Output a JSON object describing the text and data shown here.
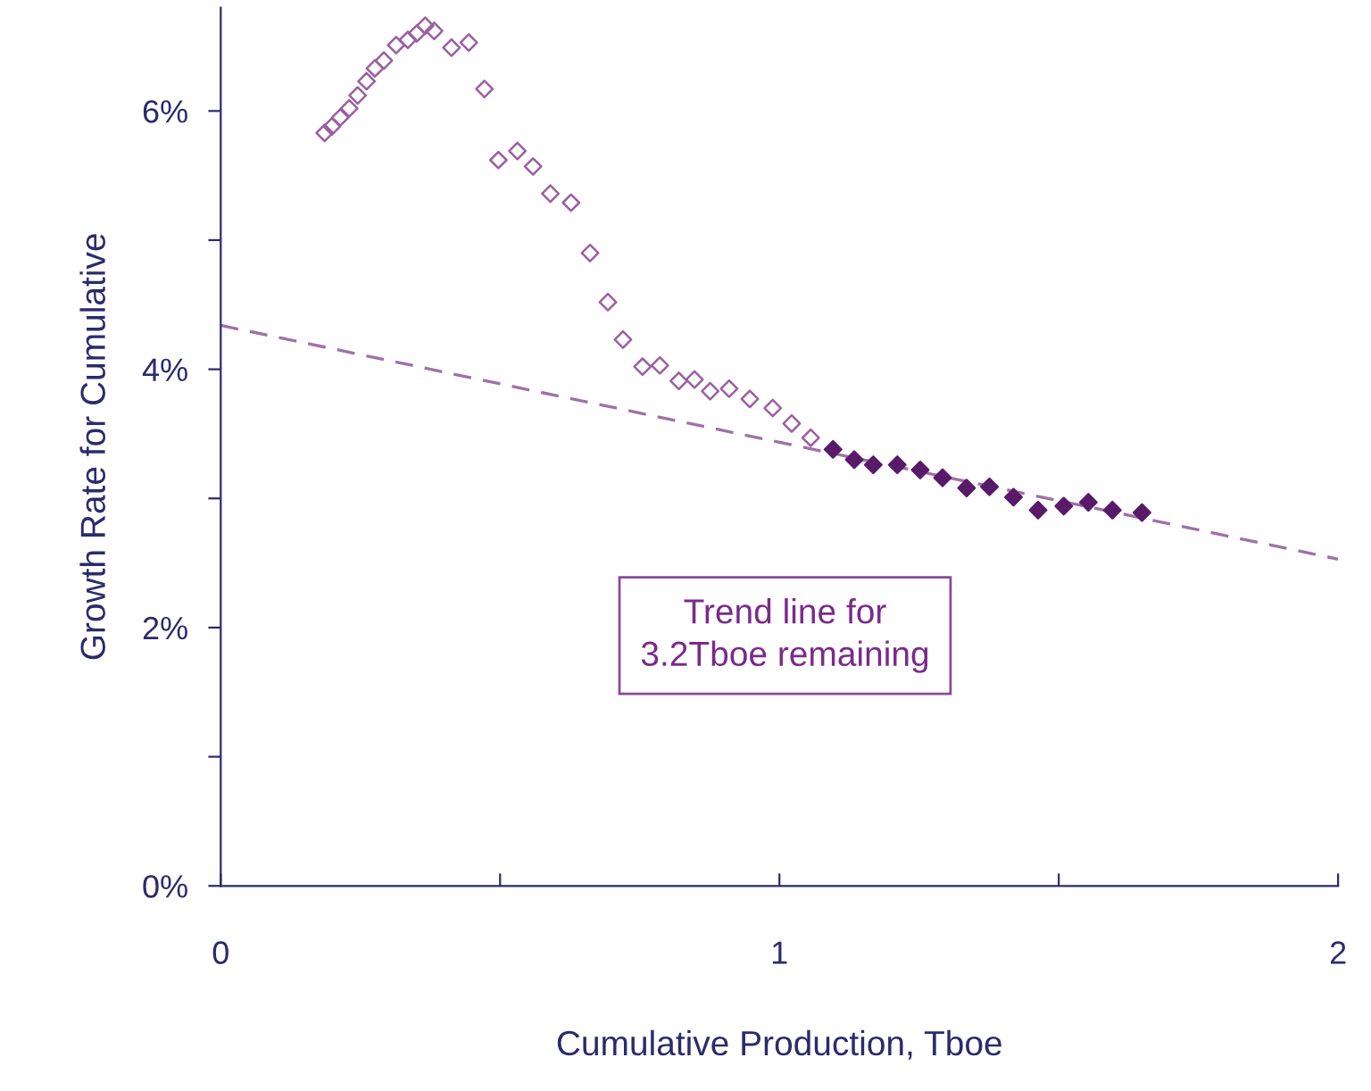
{
  "chart_data": {
    "type": "scatter",
    "xlabel": "Cumulative Production, Tboe",
    "ylabel": "Growth Rate for Cumulative",
    "xlim": [
      0,
      2
    ],
    "ylim": [
      0,
      6.8
    ],
    "xticks": [
      0,
      {
        "value": 0.5,
        "label": null
      },
      1,
      {
        "value": 1.5,
        "label": null
      },
      2
    ],
    "yticks": [
      {
        "value": 0,
        "label": "0%"
      },
      {
        "value": 1,
        "label": null
      },
      {
        "value": 2,
        "label": "2%"
      },
      {
        "value": 3,
        "label": null
      },
      {
        "value": 4,
        "label": "4%"
      },
      {
        "value": 5,
        "label": null
      },
      {
        "value": 6,
        "label": "6%"
      }
    ],
    "grid": false,
    "legend": false,
    "annotations": [
      "Trend line for\n3.2Tboe remaining"
    ],
    "series": [
      {
        "marker": "diamond",
        "color": "#9b5fa0",
        "x": [
          0.186,
          0.199,
          0.214,
          0.23,
          0.245,
          0.261,
          0.276,
          0.292,
          0.314,
          0.335,
          0.351,
          0.366,
          0.382,
          0.413,
          0.444,
          0.472,
          0.497,
          0.531,
          0.559,
          0.59,
          0.627,
          0.661,
          0.693,
          0.72,
          0.755,
          0.786,
          0.82,
          0.848,
          0.876,
          0.91,
          0.947,
          0.988,
          1.022,
          1.056
        ],
        "values": [
          5.83,
          5.88,
          5.95,
          6.02,
          6.12,
          6.23,
          6.33,
          6.39,
          6.51,
          6.55,
          6.6,
          6.66,
          6.62,
          6.49,
          6.53,
          6.17,
          5.62,
          5.69,
          5.57,
          5.36,
          5.29,
          4.9,
          4.52,
          4.23,
          4.02,
          4.03,
          3.91,
          3.92,
          3.83,
          3.85,
          3.77,
          3.7,
          3.58,
          3.47
        ]
      },
      {
        "marker": "diamond",
        "color": "#5a1a6a",
        "x": [
          1.096,
          1.134,
          1.168,
          1.211,
          1.252,
          1.292,
          1.335,
          1.376,
          1.419,
          1.463,
          1.509,
          1.553,
          1.596,
          1.649
        ],
        "values": [
          3.38,
          3.3,
          3.26,
          3.26,
          3.22,
          3.16,
          3.08,
          3.09,
          3.01,
          2.91,
          2.94,
          2.97,
          2.91,
          2.89
        ]
      },
      {
        "type": "line",
        "line_style": "dashed",
        "marker": "none",
        "color": "#a070a8",
        "x": [
          0,
          2
        ],
        "values": [
          4.34,
          2.53
        ]
      }
    ]
  }
}
